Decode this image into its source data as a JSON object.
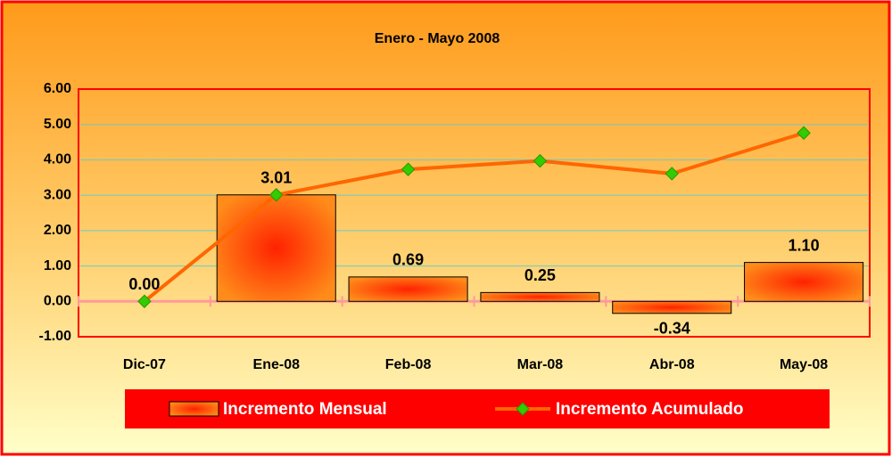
{
  "chart_data": {
    "type": "bar",
    "title": "Enero - Mayo 2008",
    "categories": [
      "Dic-07",
      "Ene-08",
      "Feb-08",
      "Mar-08",
      "Abr-08",
      "May-08"
    ],
    "series": [
      {
        "name": "Incremento Mensual",
        "type": "bar",
        "color": "#ff3300",
        "values": [
          0,
          3.01,
          0.69,
          0.25,
          -0.34,
          1.1
        ],
        "value_labels": [
          "0.00",
          "3.01",
          "0.69",
          "0.25",
          "-0.34",
          "1.10"
        ]
      },
      {
        "name": "Incremento Acumulado",
        "type": "line",
        "color": "#ff6600",
        "marker_color": "#33cc00",
        "values": [
          0,
          3.01,
          3.73,
          3.97,
          3.61,
          4.76
        ]
      }
    ],
    "ylim": [
      -1,
      6
    ],
    "yticks": [
      {
        "value": -1,
        "label": "-1.00"
      },
      {
        "value": 0,
        "label": "0.00"
      },
      {
        "value": 1,
        "label": "1.00"
      },
      {
        "value": 2,
        "label": "2.00"
      },
      {
        "value": 3,
        "label": "3.00"
      },
      {
        "value": 4,
        "label": "4.00"
      },
      {
        "value": 5,
        "label": "5.00"
      },
      {
        "value": 6,
        "label": "6.00"
      }
    ],
    "grid": true,
    "legend": "bottom"
  }
}
